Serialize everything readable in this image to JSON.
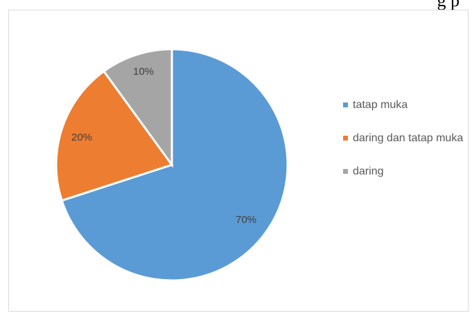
{
  "header": {
    "fragment_text": "g p"
  },
  "chart_data": {
    "type": "pie",
    "title": "",
    "slices": [
      {
        "name": "tatap muka",
        "value": 70,
        "label": "70%",
        "color": "#5b9bd5"
      },
      {
        "name": "daring dan tatap muka",
        "value": 20,
        "label": "20%",
        "color": "#ed7d31"
      },
      {
        "name": "daring",
        "value": 10,
        "label": "10%",
        "color": "#a5a5a5"
      }
    ],
    "legend_position": "right",
    "start_angle_deg": 0,
    "direction": "clockwise"
  }
}
